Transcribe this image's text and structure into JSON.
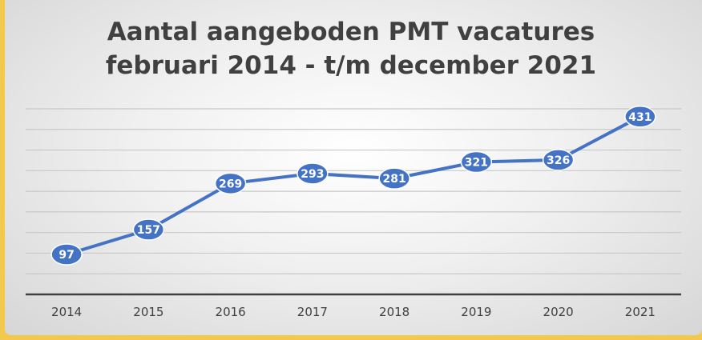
{
  "chart_data": {
    "type": "line",
    "title": [
      "Aantal aangeboden PMT vacatures",
      "februari 2014 - t/m december 2021"
    ],
    "categories": [
      "2014",
      "2015",
      "2016",
      "2017",
      "2018",
      "2019",
      "2020",
      "2021"
    ],
    "values": [
      97,
      157,
      269,
      293,
      281,
      321,
      326,
      431
    ],
    "color": "#4472c4",
    "ylim": [
      0,
      450
    ],
    "yticks": [
      0,
      50,
      100,
      150,
      200,
      250,
      300,
      350,
      400,
      450
    ],
    "grid": true
  }
}
